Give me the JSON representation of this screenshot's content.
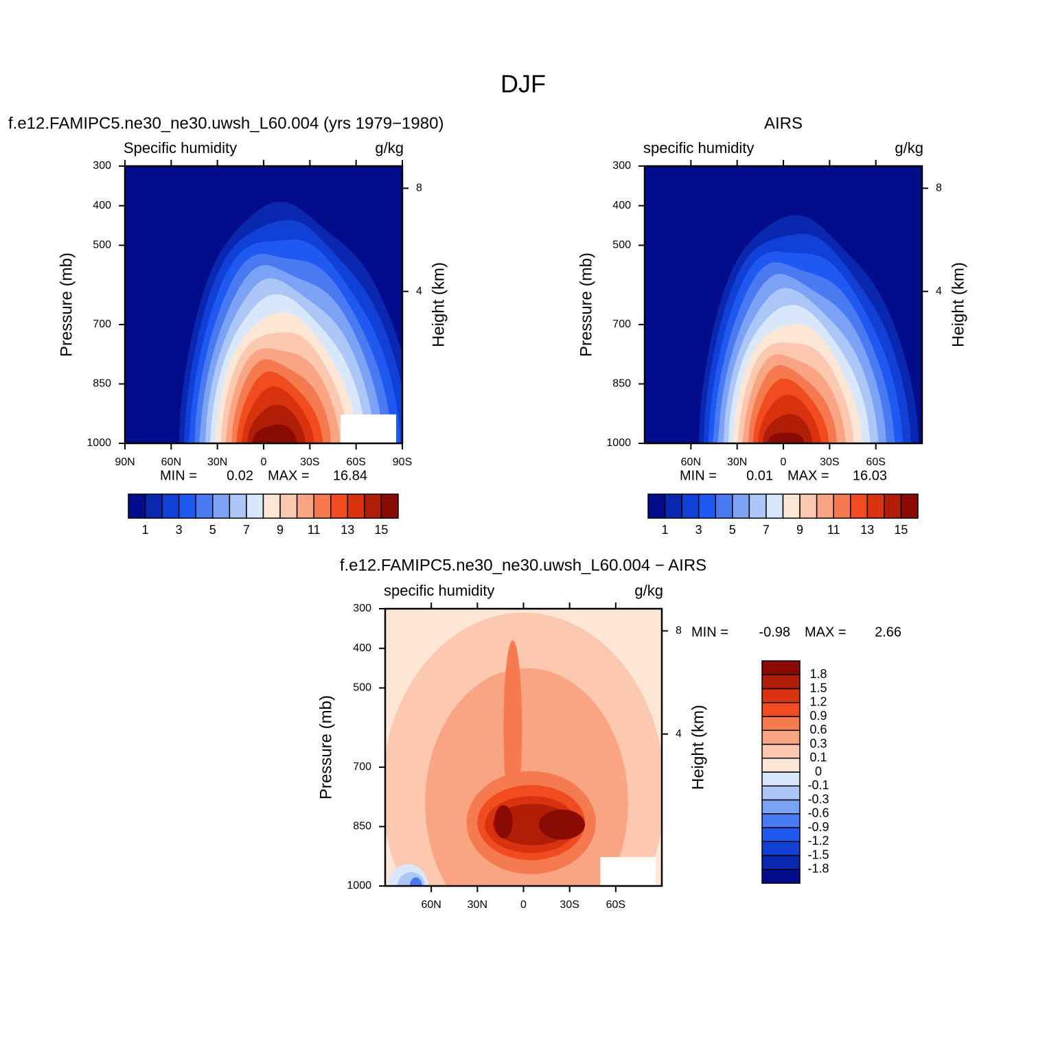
{
  "title": "DJF",
  "chart_data": [
    {
      "type": "contour",
      "title": "f.e12.FAMIPC5.ne30_ne30.uwsh_L60.004 (yrs 1979−1980)",
      "subtitle_left": "Specific humidity",
      "subtitle_right": "g/kg",
      "ylabel": "Pressure (mb)",
      "y2label": "Height (km)",
      "xlim": [
        90,
        -90
      ],
      "xticks": [
        {
          "value": 90,
          "label": "90N"
        },
        {
          "value": 60,
          "label": "60N"
        },
        {
          "value": 30,
          "label": "30N"
        },
        0,
        {
          "value": -30,
          "label": "30S"
        },
        {
          "value": -60,
          "label": "60S"
        },
        {
          "value": -90,
          "label": "90S"
        }
      ],
      "ylim": [
        1000,
        300
      ],
      "yticks": [
        300,
        400,
        500,
        700,
        850,
        1000
      ],
      "y2ticks": [
        8,
        4
      ],
      "min_label": "MIN =",
      "min": 0.02,
      "max_label": "MAX =",
      "max": 16.84,
      "levels": [
        1,
        2,
        3,
        4,
        5,
        6,
        7,
        8,
        9,
        10,
        11,
        12,
        13,
        14,
        15
      ],
      "colorbar_ticks": [
        1,
        3,
        5,
        7,
        9,
        11,
        13,
        15
      ],
      "colorbar_orientation": "horizontal",
      "colors": [
        "#030c8a",
        "#0a27b0",
        "#1040d6",
        "#2058f2",
        "#4a7af2",
        "#7ca2f6",
        "#acc6f8",
        "#d8e8fa",
        "#fde6d6",
        "#fcc8b0",
        "#f9a584",
        "#f67a50",
        "#f04c20",
        "#d8320e",
        "#b01e08",
        "#8a0a04"
      ]
    },
    {
      "type": "contour",
      "title": "AIRS",
      "subtitle_left": "specific humidity",
      "subtitle_right": "g/kg",
      "ylabel": "Pressure (mb)",
      "y2label": "Height (km)",
      "xlim": [
        90,
        -90
      ],
      "xticks": [
        {
          "value": 60,
          "label": "60N"
        },
        {
          "value": 30,
          "label": "30N"
        },
        0,
        {
          "value": -30,
          "label": "30S"
        },
        {
          "value": -60,
          "label": "60S"
        }
      ],
      "ylim": [
        1000,
        300
      ],
      "yticks": [
        300,
        400,
        500,
        700,
        850,
        1000
      ],
      "y2ticks": [
        8,
        4
      ],
      "min_label": "MIN =",
      "min": 0.01,
      "max_label": "MAX =",
      "max": 16.03,
      "levels": [
        1,
        2,
        3,
        4,
        5,
        6,
        7,
        8,
        9,
        10,
        11,
        12,
        13,
        14,
        15
      ],
      "colorbar_ticks": [
        1,
        3,
        5,
        7,
        9,
        11,
        13,
        15
      ],
      "colorbar_orientation": "horizontal",
      "colors": [
        "#030c8a",
        "#0a27b0",
        "#1040d6",
        "#2058f2",
        "#4a7af2",
        "#7ca2f6",
        "#acc6f8",
        "#d8e8fa",
        "#fde6d6",
        "#fcc8b0",
        "#f9a584",
        "#f67a50",
        "#f04c20",
        "#d8320e",
        "#b01e08",
        "#8a0a04"
      ]
    },
    {
      "type": "contour",
      "title": "f.e12.FAMIPC5.ne30_ne30.uwsh_L60.004 − AIRS",
      "subtitle_left": "specific humidity",
      "subtitle_right": "g/kg",
      "ylabel": "Pressure (mb)",
      "y2label": "Height (km)",
      "xlim": [
        90,
        -90
      ],
      "xticks": [
        {
          "value": 60,
          "label": "60N"
        },
        {
          "value": 30,
          "label": "30N"
        },
        0,
        {
          "value": -30,
          "label": "30S"
        },
        {
          "value": -60,
          "label": "60S"
        }
      ],
      "ylim": [
        1000,
        300
      ],
      "yticks": [
        300,
        400,
        500,
        700,
        850,
        1000
      ],
      "y2ticks": [
        8,
        4
      ],
      "min_label": "MIN =",
      "min": -0.98,
      "max_label": "MAX =",
      "max": 2.66,
      "levels": [
        -1.8,
        -1.5,
        -1.2,
        -0.9,
        -0.6,
        -0.3,
        -0.1,
        0,
        0.1,
        0.3,
        0.6,
        0.9,
        1.2,
        1.5,
        1.8
      ],
      "colorbar_ticks": [
        -1.8,
        -1.5,
        -1.2,
        -0.9,
        -0.6,
        -0.3,
        -0.1,
        0,
        0.1,
        0.3,
        0.6,
        0.9,
        1.2,
        1.5,
        1.8
      ],
      "colorbar_orientation": "vertical",
      "colors": [
        "#030c8a",
        "#0a27b0",
        "#1040d6",
        "#2058f2",
        "#4a7af2",
        "#7ca2f6",
        "#acc6f8",
        "#d8e8fa",
        "#fde6d6",
        "#fcc8b0",
        "#f9a584",
        "#f67a50",
        "#f04c20",
        "#d8320e",
        "#b01e08",
        "#8a0a04"
      ]
    }
  ]
}
